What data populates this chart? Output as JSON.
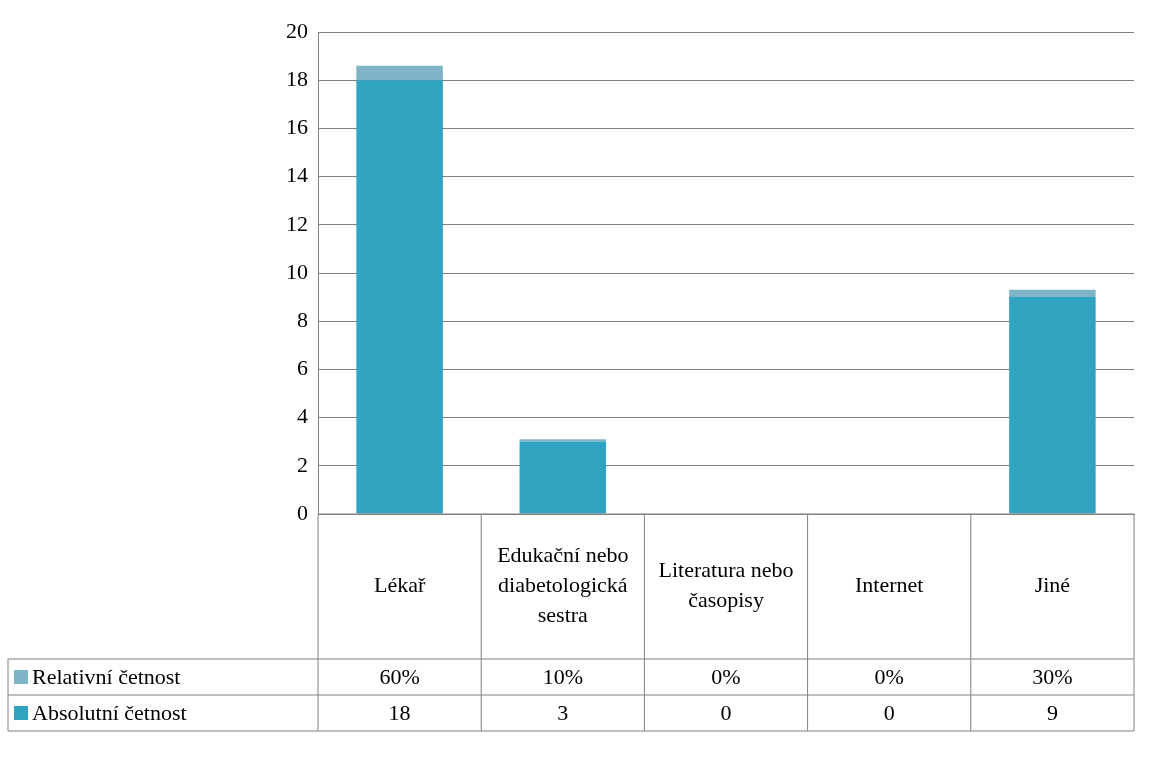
{
  "chart_data": {
    "type": "bar",
    "stacked": true,
    "categories": [
      "Lékař",
      "Edukační nebo diabetologická sestra",
      "Literatura nebo časopisy",
      "Internet",
      "Jiné"
    ],
    "series": [
      {
        "name": "Absolutní četnost",
        "color": "#2fa3c0",
        "values": [
          18,
          3,
          0,
          0,
          9
        ],
        "value_labels": [
          "18",
          "3",
          "0",
          "0",
          "9"
        ]
      },
      {
        "name": "Relativní četnost",
        "color": "#7fb3c6",
        "values": [
          0.6,
          0.1,
          0,
          0,
          0.3
        ],
        "value_labels": [
          "60%",
          "10%",
          "0%",
          "0%",
          "30%"
        ]
      }
    ],
    "ylim": [
      0,
      20
    ],
    "yticks": [
      0,
      2,
      4,
      6,
      8,
      10,
      12,
      14,
      16,
      18,
      20
    ],
    "grid": "y",
    "legend": "bottom"
  }
}
